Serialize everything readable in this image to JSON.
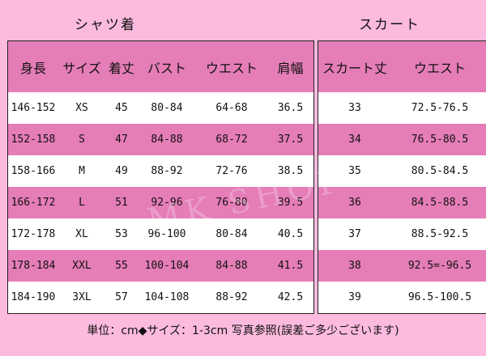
{
  "shirt": {
    "title": "シャツ着",
    "headers": [
      "身長",
      "サイズ",
      "着丈",
      "バスト",
      "ウエスト",
      "肩幅"
    ],
    "rows": [
      [
        "146-152",
        "XS",
        "45",
        "80-84",
        "64-68",
        "36.5"
      ],
      [
        "152-158",
        "S",
        "47",
        "84-88",
        "68-72",
        "37.5"
      ],
      [
        "158-166",
        "M",
        "49",
        "88-92",
        "72-76",
        "38.5"
      ],
      [
        "166-172",
        "L",
        "51",
        "92-96",
        "76-80",
        "39.5"
      ],
      [
        "172-178",
        "XL",
        "53",
        "96-100",
        "80-84",
        "40.5"
      ],
      [
        "178-184",
        "XXL",
        "55",
        "100-104",
        "84-88",
        "41.5"
      ],
      [
        "184-190",
        "3XL",
        "57",
        "104-108",
        "88-92",
        "42.5"
      ]
    ]
  },
  "skirt": {
    "title": "スカート",
    "headers": [
      "スカート丈",
      "ウエスト"
    ],
    "rows": [
      [
        "33",
        "72.5-76.5"
      ],
      [
        "34",
        "76.5-80.5"
      ],
      [
        "35",
        "80.5-84.5"
      ],
      [
        "36",
        "84.5-88.5"
      ],
      [
        "37",
        "88.5-92.5"
      ],
      [
        "38",
        "92.5=-96.5"
      ],
      [
        "39",
        "96.5-100.5"
      ]
    ]
  },
  "footer": "単位：cm◆サイズ：1-3cm 写真参照(誤差ご多少ございます)",
  "watermark": "MK SHOP",
  "colors": {
    "background": "#fbbade",
    "header": "#e57db7",
    "row_alt": "#ffffff"
  }
}
